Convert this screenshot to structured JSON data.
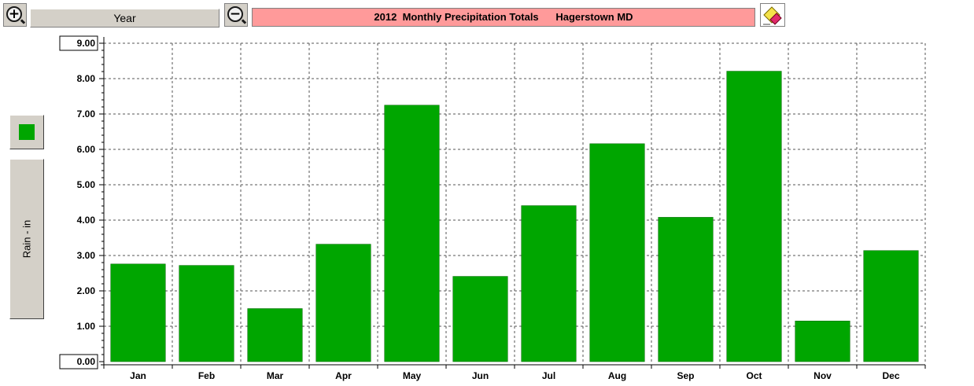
{
  "toolbar": {
    "zoom_in_symbol": "+",
    "zoom_out_symbol": "−",
    "period_label": "Year",
    "title_text": "2012  Monthly Precipitation Totals      Hagerstown MD",
    "eraser_icon": "eraser-icon"
  },
  "side_panel": {
    "series_color": "#00a600",
    "axis_label": "Rain - in"
  },
  "chart_data": {
    "type": "bar",
    "title": "2012  Monthly Precipitation Totals      Hagerstown MD",
    "ylabel": "Rain - in",
    "xlabel": "",
    "categories": [
      "Jan",
      "Feb",
      "Mar",
      "Apr",
      "May",
      "Jun",
      "Jul",
      "Aug",
      "Sep",
      "Oct",
      "Nov",
      "Dec"
    ],
    "values": [
      2.76,
      2.72,
      1.5,
      3.32,
      7.25,
      2.41,
      4.41,
      6.16,
      4.08,
      8.21,
      1.15,
      3.14
    ],
    "ylim": [
      0,
      9
    ],
    "yticks": [
      "0.00",
      "1.00",
      "2.00",
      "3.00",
      "4.00",
      "5.00",
      "6.00",
      "7.00",
      "8.00",
      "9.00"
    ],
    "bar_color": "#00a600",
    "grid": true,
    "legend": "none"
  }
}
